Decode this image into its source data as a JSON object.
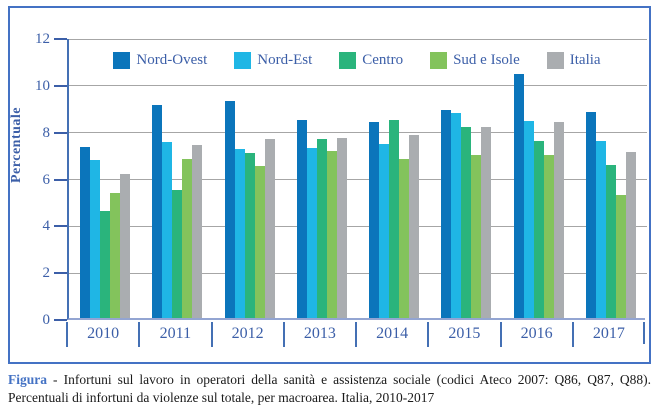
{
  "figure": {
    "caption_label": "Figura",
    "caption_line1": "- Infortuni sul lavoro in operatori della sanità e assistenza sociale (codici Ateco 2007: Q86, Q87, Q88).",
    "caption_line2": "Percentuali di infortuni da violenze sul totale, per macroarea. Italia, 2010-2017"
  },
  "chart_data": {
    "type": "bar",
    "title": "",
    "xlabel": "",
    "ylabel": "Percentuale",
    "ylim": [
      0,
      12
    ],
    "ytick_step": 2,
    "grid": true,
    "legend_position": "top-center",
    "categories": [
      "2010",
      "2011",
      "2012",
      "2013",
      "2014",
      "2015",
      "2016",
      "2017"
    ],
    "series": [
      {
        "name": "Nord-Ovest",
        "color": "#0b75bb",
        "values": [
          7.3,
          9.1,
          9.25,
          8.45,
          8.35,
          8.9,
          10.4,
          8.8
        ]
      },
      {
        "name": "Nord-Est",
        "color": "#1fb6e5",
        "values": [
          6.75,
          7.5,
          7.2,
          7.25,
          7.45,
          8.75,
          8.4,
          7.55
        ]
      },
      {
        "name": "Centro",
        "color": "#2ab47c",
        "values": [
          4.55,
          5.45,
          7.05,
          7.65,
          8.45,
          8.15,
          7.55,
          6.55
        ]
      },
      {
        "name": "Sud e Isole",
        "color": "#83c35c",
        "values": [
          5.35,
          6.8,
          6.5,
          7.15,
          6.8,
          6.95,
          6.95,
          5.25
        ]
      },
      {
        "name": "Italia",
        "color": "#aaadb0",
        "values": [
          6.15,
          7.4,
          7.65,
          7.7,
          7.8,
          8.15,
          8.35,
          7.1
        ]
      }
    ],
    "colors": {
      "axis_blue": "#3c5fa8",
      "border_blue": "#4472c4",
      "grid_gray": "#a6a6a6",
      "baseline": "#93a5d2"
    }
  }
}
